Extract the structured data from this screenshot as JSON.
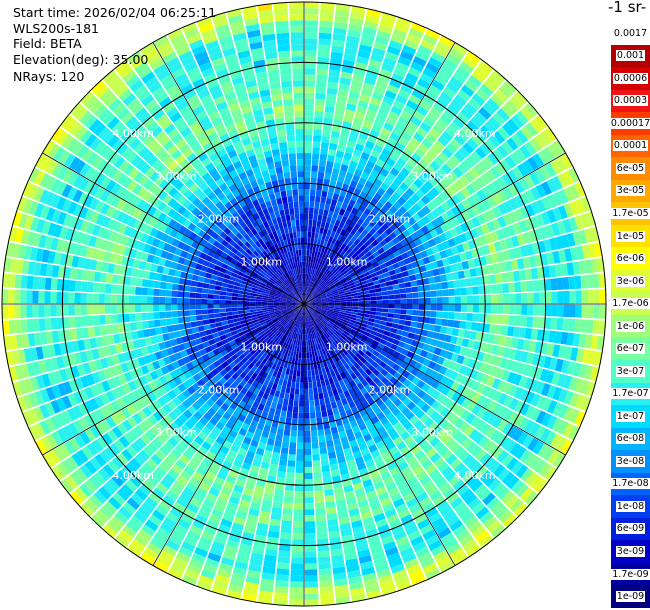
{
  "header": {
    "start_time": "Start time: 2026/02/04 06:25:11",
    "instrument": "WLS200s-181",
    "field": "Field: BETA",
    "elevation": "Elevation(deg): 35.00",
    "nrays": "NRays: 120"
  },
  "colorbar": {
    "title": "-1 sr-",
    "labels": [
      "0.0017",
      "0.001",
      "0.0006",
      "0.0003",
      "0.00017",
      "0.0001",
      "6e-05",
      "3e-05",
      "1.7e-05",
      "1e-05",
      "6e-06",
      "3e-06",
      "1.7e-06",
      "1e-06",
      "6e-07",
      "3e-07",
      "1.7e-07",
      "1e-07",
      "6e-08",
      "3e-08",
      "1.7e-08",
      "1e-08",
      "6e-09",
      "3e-09",
      "1.7e-09",
      "1e-09"
    ],
    "colors": [
      "#ffffff",
      "#b40000",
      "#d40000",
      "#f01414",
      "#ff3c00",
      "#ff6400",
      "#ff8c00",
      "#ffa800",
      "#ffc400",
      "#ffe000",
      "#ffff00",
      "#e0ff32",
      "#c8ff50",
      "#a0ff78",
      "#78ffa0",
      "#50ffc8",
      "#28f0f0",
      "#00dcff",
      "#00b4ff",
      "#0090ff",
      "#0064ff",
      "#0040f0",
      "#0020dc",
      "#0000c8",
      "#0000a0",
      "#000080"
    ]
  },
  "chart_data": {
    "type": "heatmap",
    "projection": "polar PPI",
    "field": "BETA",
    "elevation_deg": 35.0,
    "n_rays": 120,
    "range_rings_km": [
      1.0,
      2.0,
      3.0,
      4.0
    ],
    "range_ring_labels": [
      "1.00km",
      "2.00km",
      "3.00km",
      "4.00km"
    ],
    "max_range_km": 5.0,
    "spoke_interval_deg": 30,
    "radial_profile_log10_beta": [
      {
        "range_km": 0.0,
        "value": -8.8
      },
      {
        "range_km": 1.0,
        "value": -8.3
      },
      {
        "range_km": 1.8,
        "value": -7.9
      },
      {
        "range_km": 2.2,
        "value": -7.4
      },
      {
        "range_km": 2.6,
        "value": -6.9
      },
      {
        "range_km": 3.2,
        "value": -6.3
      },
      {
        "range_km": 4.0,
        "value": -6.6
      },
      {
        "range_km": 4.5,
        "value": -6.8
      },
      {
        "range_km": 4.8,
        "value": -5.8
      },
      {
        "range_km": 5.0,
        "value": -5.5
      }
    ]
  }
}
